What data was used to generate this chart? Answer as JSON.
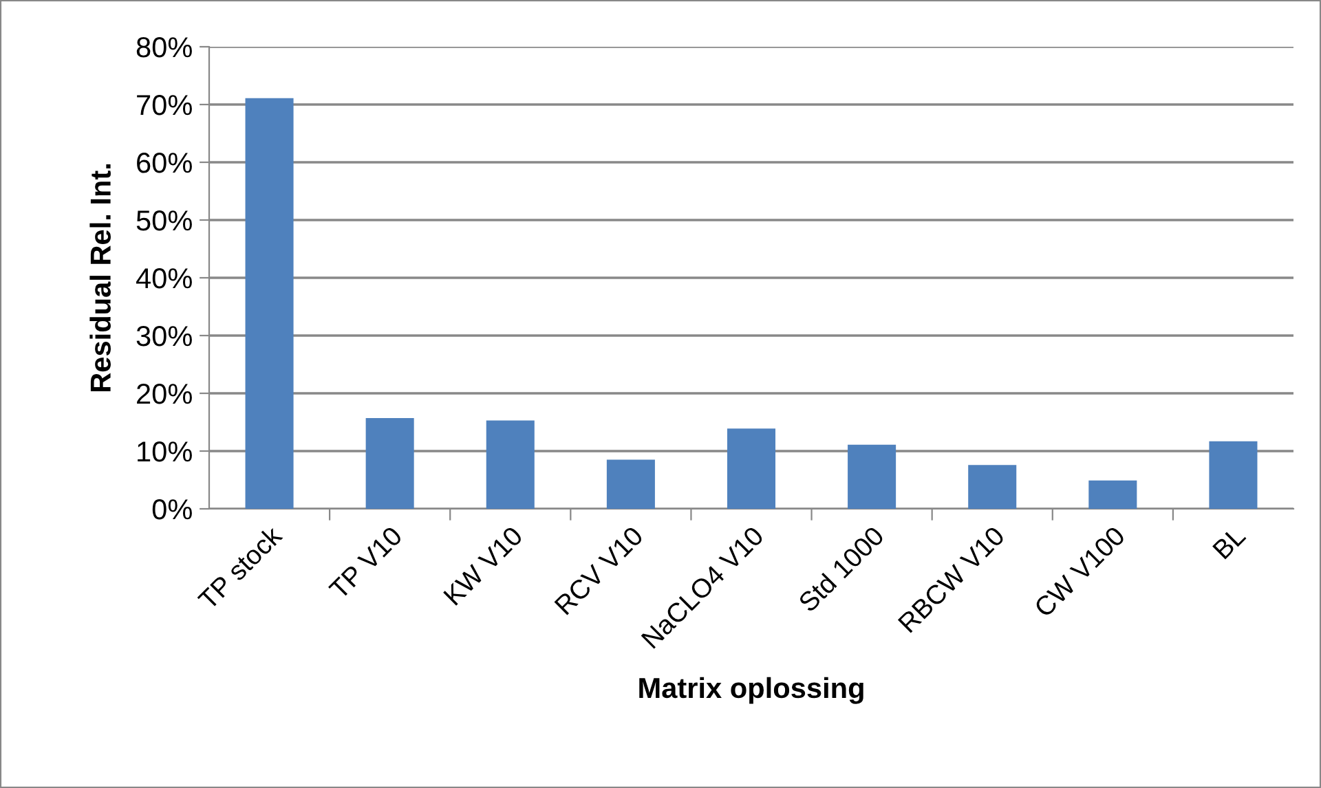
{
  "chart_data": {
    "type": "bar",
    "xlabel": "Matrix oplossing",
    "ylabel": "Residual Rel. Int.",
    "categories": [
      "TP stock",
      "TP V10",
      "KW V10",
      "RCV V10",
      "NaCLO4 V10",
      "Std 1000",
      "RBCW V10",
      "CW V100",
      "BL"
    ],
    "values": [
      71.1,
      15.7,
      15.3,
      8.5,
      13.9,
      11.1,
      7.6,
      4.9,
      11.7
    ],
    "color": "#4f81bd",
    "ylim": [
      0,
      80
    ],
    "yticks": [
      {
        "value": 0,
        "label": "0%"
      },
      {
        "value": 10,
        "label": "10%"
      },
      {
        "value": 20,
        "label": "20%"
      },
      {
        "value": 30,
        "label": "30%"
      },
      {
        "value": 40,
        "label": "40%"
      },
      {
        "value": 50,
        "label": "50%"
      },
      {
        "value": 60,
        "label": "60%"
      },
      {
        "value": 70,
        "label": "70%"
      },
      {
        "value": 80,
        "label": "80%"
      }
    ],
    "grid": "y",
    "legend": false
  }
}
